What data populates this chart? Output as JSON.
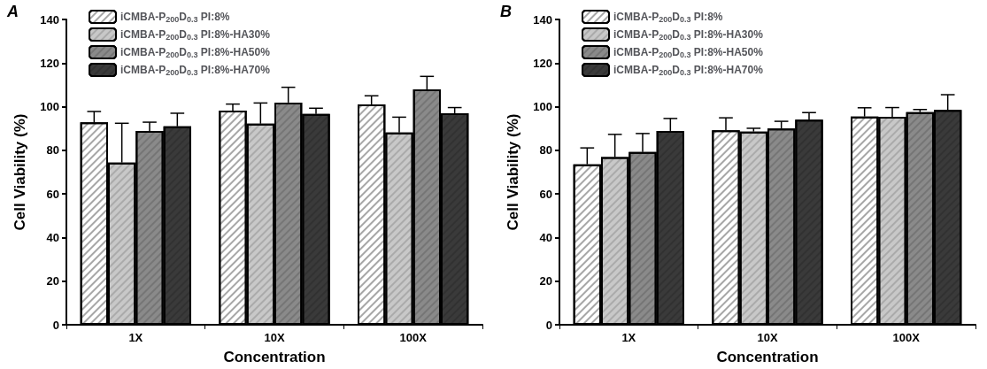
{
  "chart_data": [
    {
      "type": "bar",
      "annotations": [
        "A"
      ],
      "xlabel": "Concentration",
      "ylabel": "Cell Viability (%)",
      "categories": [
        "1X",
        "10X",
        "100X"
      ],
      "ylim": [
        0,
        140
      ],
      "yticks": [
        0,
        20,
        40,
        60,
        80,
        100,
        120,
        140
      ],
      "grid": false,
      "legend": "top left",
      "series": [
        {
          "name": "iCMBA-P$_{200}$D$_{0.3}$ PI:8%",
          "color": "#ffffff",
          "values": [
            92.8,
            98.2,
            101
          ],
          "errors": [
            5,
            3,
            4
          ]
        },
        {
          "name": "iCMBA-P$_{200}$D$_{0.3}$ PI:8%-HA30%",
          "color": "#c8c8c8",
          "values": [
            74.4,
            92.2,
            88.2
          ],
          "errors": [
            18,
            9.5,
            7
          ]
        },
        {
          "name": "iCMBA-P$_{200}$D$_{0.3}$ PI:8%-HA50%",
          "color": "#8a8a8a",
          "values": [
            88.9,
            101.9,
            107.9
          ],
          "errors": [
            4,
            7,
            6
          ]
        },
        {
          "name": "iCMBA-P$_{200}$D$_{0.3}$ PI:8%-HA70%",
          "color": "#3a3a3a",
          "values": [
            91,
            96.7,
            97
          ],
          "errors": [
            6,
            2.6,
            2.6
          ]
        }
      ]
    },
    {
      "type": "bar",
      "annotations": [
        "B"
      ],
      "xlabel": "Concentration",
      "ylabel": "Cell Viability (%)",
      "categories": [
        "1X",
        "10X",
        "100X"
      ],
      "ylim": [
        0,
        140
      ],
      "yticks": [
        0,
        20,
        40,
        60,
        80,
        100,
        120,
        140
      ],
      "grid": false,
      "legend": "top left",
      "series": [
        {
          "name": "iCMBA-P$_{200}$D$_{0.3}$ PI:8%",
          "color": "#ffffff",
          "values": [
            73.6,
            89.2,
            95.5
          ],
          "errors": [
            7.5,
            5.7,
            4
          ]
        },
        {
          "name": "iCMBA-P$_{200}$D$_{0.3}$ PI:8%-HA30%",
          "color": "#c8c8c8",
          "values": [
            76.9,
            88.6,
            95.4
          ],
          "errors": [
            10.4,
            1.5,
            4.2
          ]
        },
        {
          "name": "iCMBA-P$_{200}$D$_{0.3}$ PI:8%-HA50%",
          "color": "#8a8a8a",
          "values": [
            79.2,
            90,
            97.5
          ],
          "errors": [
            8.5,
            3.3,
            1.2
          ]
        },
        {
          "name": "iCMBA-P$_{200}$D$_{0.3}$ PI:8%-HA70%",
          "color": "#3a3a3a",
          "values": [
            88.9,
            94,
            98.5
          ],
          "errors": [
            5.7,
            3.3,
            7
          ]
        }
      ]
    }
  ]
}
